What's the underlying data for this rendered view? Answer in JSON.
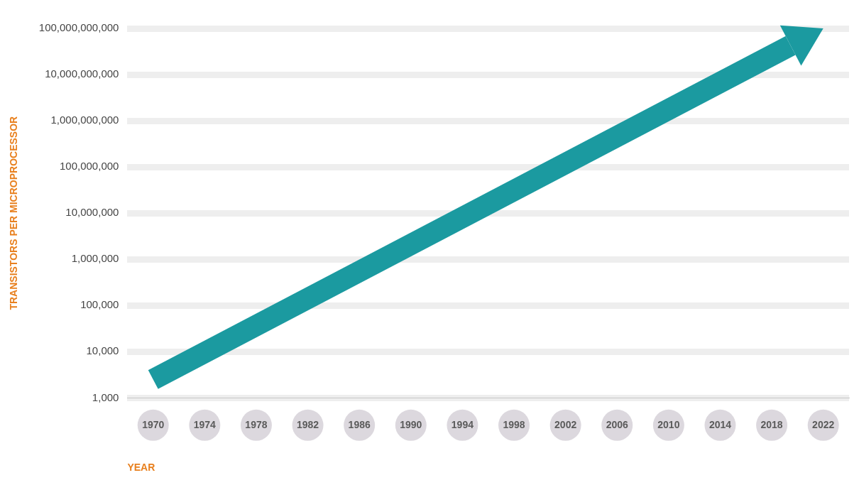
{
  "chart_data": {
    "type": "line",
    "x_label": "YEAR",
    "y_label": "TRANSISTORS PER MICROPROCESSOR",
    "x": [
      1970,
      2022
    ],
    "values": [
      2500,
      100000000000
    ],
    "color": "#1b9aa0",
    "xlim": [
      1968,
      2024
    ],
    "xticks": [
      1970,
      1974,
      1978,
      1982,
      1986,
      1990,
      1994,
      1998,
      2002,
      2006,
      2010,
      2014,
      2018,
      2022
    ],
    "ylim": [
      1000,
      100000000000
    ],
    "yticks": [
      {
        "value": 1000,
        "label": "1,000"
      },
      {
        "value": 10000,
        "label": "10,000"
      },
      {
        "value": 100000,
        "label": "100,000"
      },
      {
        "value": 1000000,
        "label": "1,000,000"
      },
      {
        "value": 10000000,
        "label": "10,000,000"
      },
      {
        "value": 100000000,
        "label": "100,000,000"
      },
      {
        "value": 1000000000,
        "label": "1,000,000,000"
      },
      {
        "value": 10000000000,
        "label": "10,000,000,000"
      },
      {
        "value": 100000000000,
        "label": "100,000,000,000"
      }
    ],
    "log": "y",
    "grid": true
  }
}
